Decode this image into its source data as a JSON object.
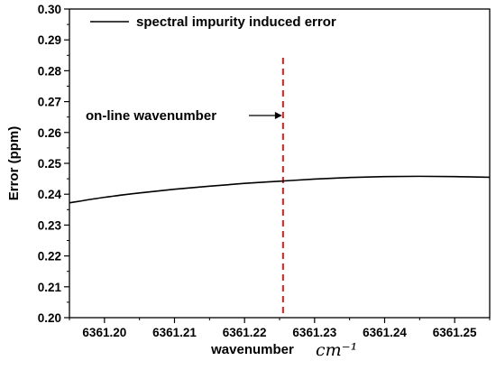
{
  "chart_data": {
    "type": "line",
    "xlabel": "wavenumber",
    "xunit": "cm⁻¹",
    "ylabel": "Error (ppm)",
    "xlim": [
      6361.195,
      6361.255
    ],
    "ylim": [
      0.2,
      0.3
    ],
    "x_ticks": [
      "6361.20",
      "6361.21",
      "6361.22",
      "6361.23",
      "6361.24",
      "6361.25"
    ],
    "y_ticks": [
      "0.20",
      "0.21",
      "0.22",
      "0.23",
      "0.24",
      "0.25",
      "0.26",
      "0.27",
      "0.28",
      "0.29",
      "0.30"
    ],
    "series": [
      {
        "name": "spectral impurity induced error",
        "color": "#000000",
        "x": [
          6361.195,
          6361.2,
          6361.205,
          6361.21,
          6361.215,
          6361.22,
          6361.225,
          6361.23,
          6361.235,
          6361.24,
          6361.245,
          6361.25,
          6361.255
        ],
        "y": [
          0.2372,
          0.239,
          0.2404,
          0.2416,
          0.2426,
          0.2435,
          0.2442,
          0.2449,
          0.2454,
          0.2457,
          0.2458,
          0.2457,
          0.2455
        ]
      }
    ],
    "marker_line": {
      "x": 6361.2255,
      "color": "#e02020",
      "style": "dashed"
    },
    "annotation": {
      "text": "on-line wavenumber",
      "points_to_x": 6361.2255,
      "y": 0.2655
    },
    "legend": {
      "position": "top-left"
    }
  }
}
